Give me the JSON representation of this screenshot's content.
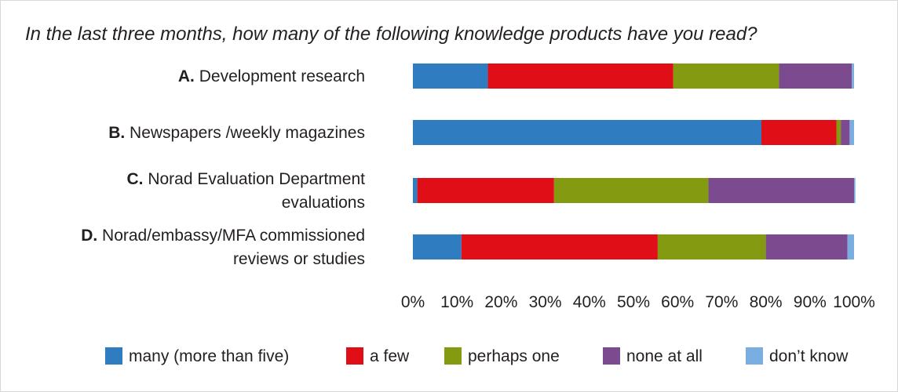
{
  "chart_data": {
    "type": "bar",
    "orientation": "horizontal",
    "stacked": true,
    "normalized": true,
    "title": "In the last three months, how many of the following knowledge products have you read?",
    "categories": [
      {
        "letter": "A.",
        "lines": [
          "Development research"
        ]
      },
      {
        "letter": "B.",
        "lines": [
          "Newspapers /weekly magazines"
        ]
      },
      {
        "letter": "C.",
        "lines": [
          "Norad Evaluation Department",
          "evaluations"
        ]
      },
      {
        "letter": "D.",
        "lines": [
          "Norad/embassy/MFA commissioned",
          "reviews or studies"
        ]
      }
    ],
    "series": [
      {
        "name": "many (more than five)",
        "color": "#2f7cc1",
        "values": [
          17,
          79,
          1,
          11
        ]
      },
      {
        "name": "a few",
        "color": "#e00f17",
        "values": [
          42,
          17,
          31,
          44.5
        ]
      },
      {
        "name": "perhaps one",
        "color": "#849a10",
        "values": [
          24,
          1,
          35,
          24.5
        ]
      },
      {
        "name": "none at all",
        "color": "#7c4a8e",
        "values": [
          16.5,
          2,
          33,
          18.5
        ]
      },
      {
        "name": "don’t know",
        "color": "#7aaee0",
        "values": [
          0.5,
          1,
          0.3,
          1.5
        ]
      }
    ],
    "xlim": [
      0,
      100
    ],
    "xticks": [
      "0%",
      "10%",
      "20%",
      "30%",
      "40%",
      "50%",
      "60%",
      "70%",
      "80%",
      "90%",
      "100%"
    ],
    "grid": false,
    "legend_position": "bottom"
  }
}
